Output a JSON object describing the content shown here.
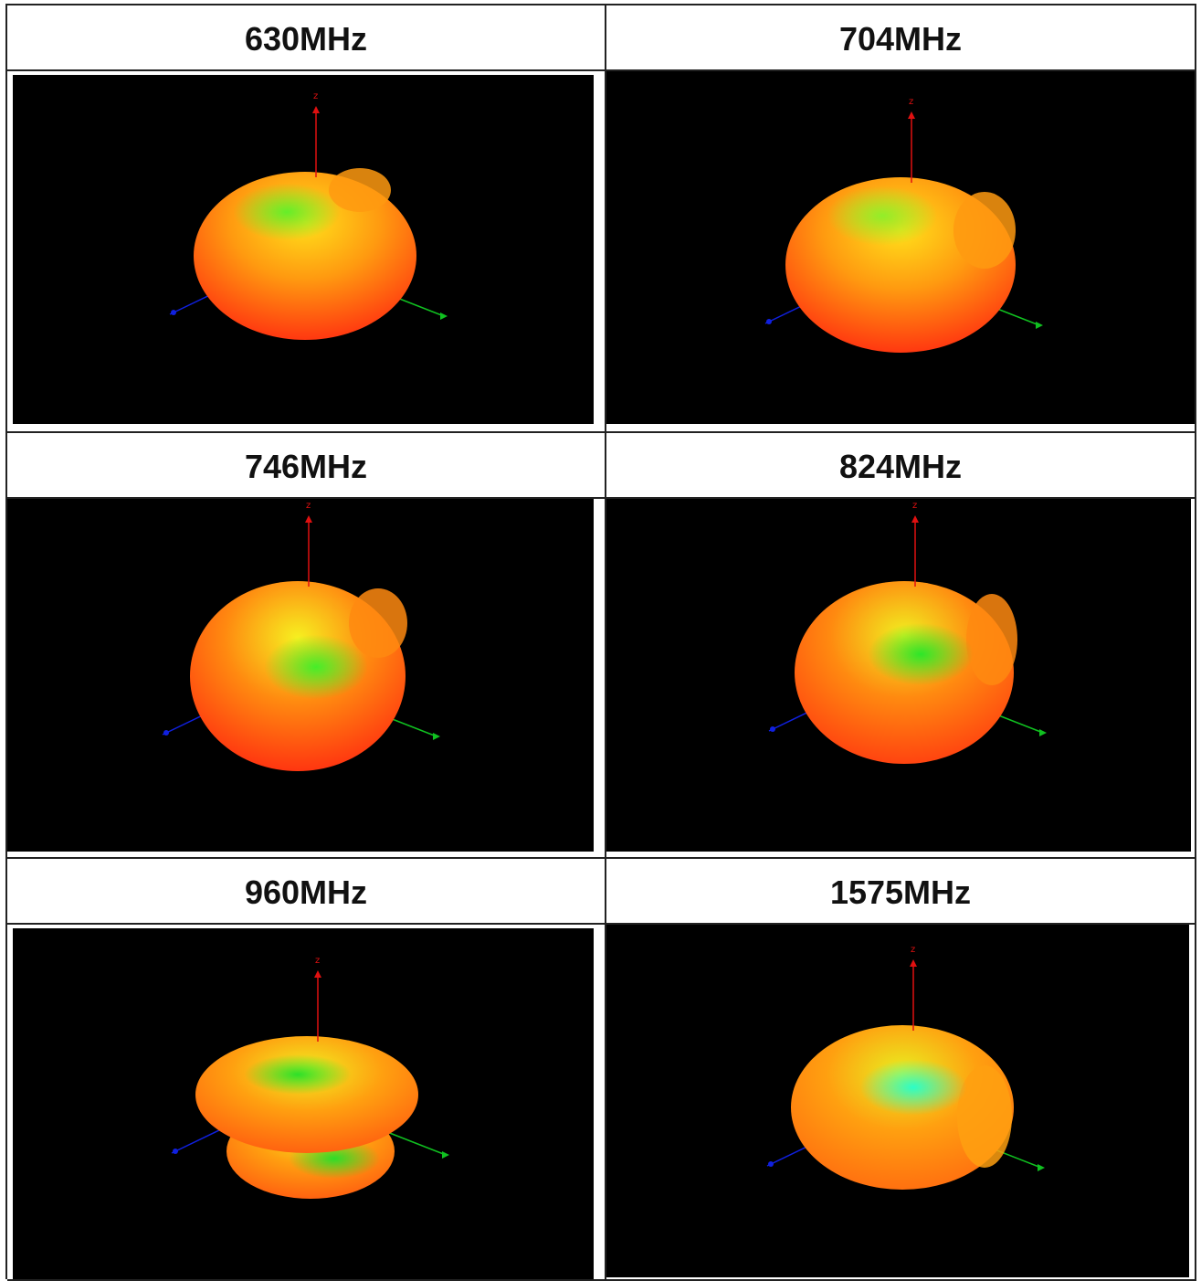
{
  "panels": [
    {
      "label": "630MHz",
      "axis_label": "z",
      "colors": {
        "rim": "#ff2a10",
        "mid": "#ff9a10",
        "top": "#ffe01a",
        "center": "#5cf02a"
      }
    },
    {
      "label": "704MHz",
      "axis_label": "z",
      "colors": {
        "rim": "#ff2a10",
        "mid": "#ff9a10",
        "top": "#ffe01a",
        "center": "#8cf02a"
      }
    },
    {
      "label": "746MHz",
      "axis_label": "z",
      "colors": {
        "rim": "#ff2a10",
        "mid": "#ff8a10",
        "top": "#f6f020",
        "center": "#3cf02a"
      }
    },
    {
      "label": "824MHz",
      "axis_label": "z",
      "colors": {
        "rim": "#ff3a10",
        "mid": "#ff8a10",
        "top": "#f0f020",
        "center": "#22e82a"
      }
    },
    {
      "label": "960MHz",
      "axis_label": "z",
      "colors": {
        "rim": "#ff5a10",
        "mid": "#ffa010",
        "top": "#f0f020",
        "center": "#22e02a"
      }
    },
    {
      "label": "1575MHz",
      "axis_label": "z",
      "colors": {
        "rim": "#ff6a10",
        "mid": "#ffa010",
        "top": "#e8f020",
        "center": "#22ffd0"
      }
    }
  ],
  "axis_colors": {
    "z": "#e01010",
    "x": "#1020e0",
    "y": "#10c020"
  }
}
